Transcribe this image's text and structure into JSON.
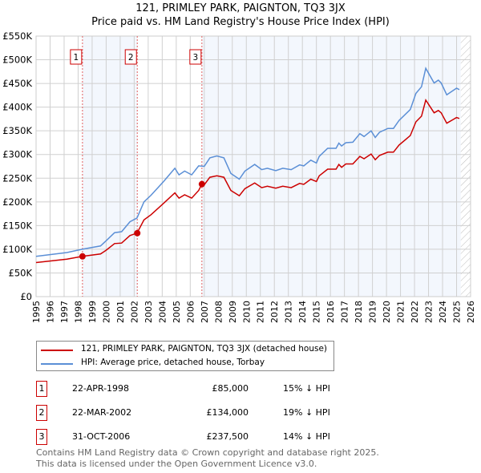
{
  "chart_data": {
    "type": "line",
    "title": "121, PRIMLEY PARK, PAIGNTON, TQ3 3JX",
    "subtitle": "Price paid vs. HM Land Registry's House Price Index (HPI)",
    "xlim": [
      1995,
      2026
    ],
    "ylim": [
      0,
      550000
    ],
    "x_ticks": [
      "1995",
      "1996",
      "1997",
      "1998",
      "1999",
      "2000",
      "2001",
      "2002",
      "2003",
      "2004",
      "2005",
      "2006",
      "2007",
      "2008",
      "2009",
      "2010",
      "2011",
      "2012",
      "2013",
      "2014",
      "2015",
      "2016",
      "2017",
      "2018",
      "2019",
      "2020",
      "2021",
      "2022",
      "2023",
      "2024",
      "2025",
      "2026"
    ],
    "y_ticks": [
      "£0",
      "£50K",
      "£100K",
      "£150K",
      "£200K",
      "£250K",
      "£300K",
      "£350K",
      "£400K",
      "£450K",
      "£500K",
      "£550K"
    ],
    "grid": true,
    "series": [
      {
        "name": "121, PRIMLEY PARK, PAIGNTON, TQ3 3JX (detached house)",
        "color": "#cc0000",
        "x": [
          1995,
          1997.2,
          1998.3,
          1999.6,
          2000,
          2000.6,
          2001.1,
          2001.7,
          2002.2,
          2002.7,
          2003.2,
          2004.1,
          2004.9,
          2005.2,
          2005.6,
          2006.1,
          2006.6,
          2006.83,
          2007.0,
          2007.4,
          2007.9,
          2008.4,
          2008.9,
          2009.5,
          2009.9,
          2010.6,
          2011.1,
          2011.5,
          2012.1,
          2012.6,
          2013.2,
          2013.8,
          2014.1,
          2014.6,
          2015.0,
          2015.2,
          2015.8,
          2016.4,
          2016.6,
          2016.8,
          2017.1,
          2017.6,
          2018.1,
          2018.4,
          2018.9,
          2019.2,
          2019.5,
          2020.1,
          2020.5,
          2020.9,
          2021.7,
          2022.1,
          2022.5,
          2022.8,
          2023.4,
          2023.7,
          2023.9,
          2024.3,
          2024.7,
          2025.0,
          2025.2
        ],
        "y": [
          72,
          79,
          85,
          90,
          98,
          112,
          113,
          129,
          134,
          162,
          173,
          197,
          219,
          208,
          215,
          208,
          224,
          237.5,
          236,
          252,
          255,
          252,
          224,
          213,
          228,
          240,
          230,
          233,
          229,
          233,
          230,
          239,
          237,
          248,
          243,
          255,
          269,
          269,
          279,
          273,
          280,
          280,
          296,
          291,
          301,
          289,
          298,
          305,
          305,
          320,
          340,
          369,
          381,
          415,
          388,
          393,
          388,
          366,
          373,
          378,
          376
        ]
      },
      {
        "name": "HPI: Average price, detached house, Torbay",
        "color": "#5b8fd6",
        "x": [
          1995,
          1997.2,
          1998.3,
          1999.6,
          2000,
          2000.6,
          2001.1,
          2001.7,
          2002.2,
          2002.7,
          2003.2,
          2004.1,
          2004.9,
          2005.2,
          2005.6,
          2006.1,
          2006.6,
          2007.0,
          2007.4,
          2007.9,
          2008.4,
          2008.9,
          2009.5,
          2009.9,
          2010.6,
          2011.1,
          2011.5,
          2012.1,
          2012.6,
          2013.2,
          2013.8,
          2014.1,
          2014.6,
          2015.0,
          2015.2,
          2015.8,
          2016.4,
          2016.6,
          2016.8,
          2017.1,
          2017.6,
          2018.1,
          2018.4,
          2018.9,
          2019.2,
          2019.5,
          2020.1,
          2020.5,
          2020.9,
          2021.7,
          2022.1,
          2022.5,
          2022.8,
          2023.4,
          2023.7,
          2023.9,
          2024.3,
          2024.7,
          2025.0,
          2025.2
        ],
        "y": [
          85,
          93,
          100,
          107,
          118,
          135,
          137,
          158,
          166,
          200,
          214,
          243,
          271,
          257,
          265,
          257,
          276,
          275,
          293,
          297,
          293,
          260,
          248,
          265,
          279,
          268,
          271,
          266,
          271,
          268,
          278,
          276,
          288,
          282,
          296,
          313,
          313,
          324,
          318,
          325,
          326,
          344,
          338,
          350,
          336,
          347,
          355,
          355,
          372,
          395,
          429,
          443,
          482,
          451,
          457,
          451,
          426,
          434,
          440,
          437
        ]
      }
    ],
    "y_unit": "thousands GBP",
    "sales": [
      {
        "label": "1",
        "x": 1998.31,
        "y": 85,
        "date": "22-APR-1998",
        "price": "£85,000",
        "hpi": "15% ↓ HPI"
      },
      {
        "label": "2",
        "x": 2002.22,
        "y": 134,
        "date": "22-MAR-2002",
        "price": "£134,000",
        "hpi": "19% ↓ HPI"
      },
      {
        "label": "3",
        "x": 2006.83,
        "y": 237.5,
        "date": "31-OCT-2006",
        "price": "£237,500",
        "hpi": "14% ↓ HPI"
      }
    ],
    "forecast_start": 2025.3,
    "legend_position": "bottom"
  },
  "footer": [
    "Contains HM Land Registry data © Crown copyright and database right 2025.",
    "This data is licensed under the Open Government Licence v3.0."
  ]
}
